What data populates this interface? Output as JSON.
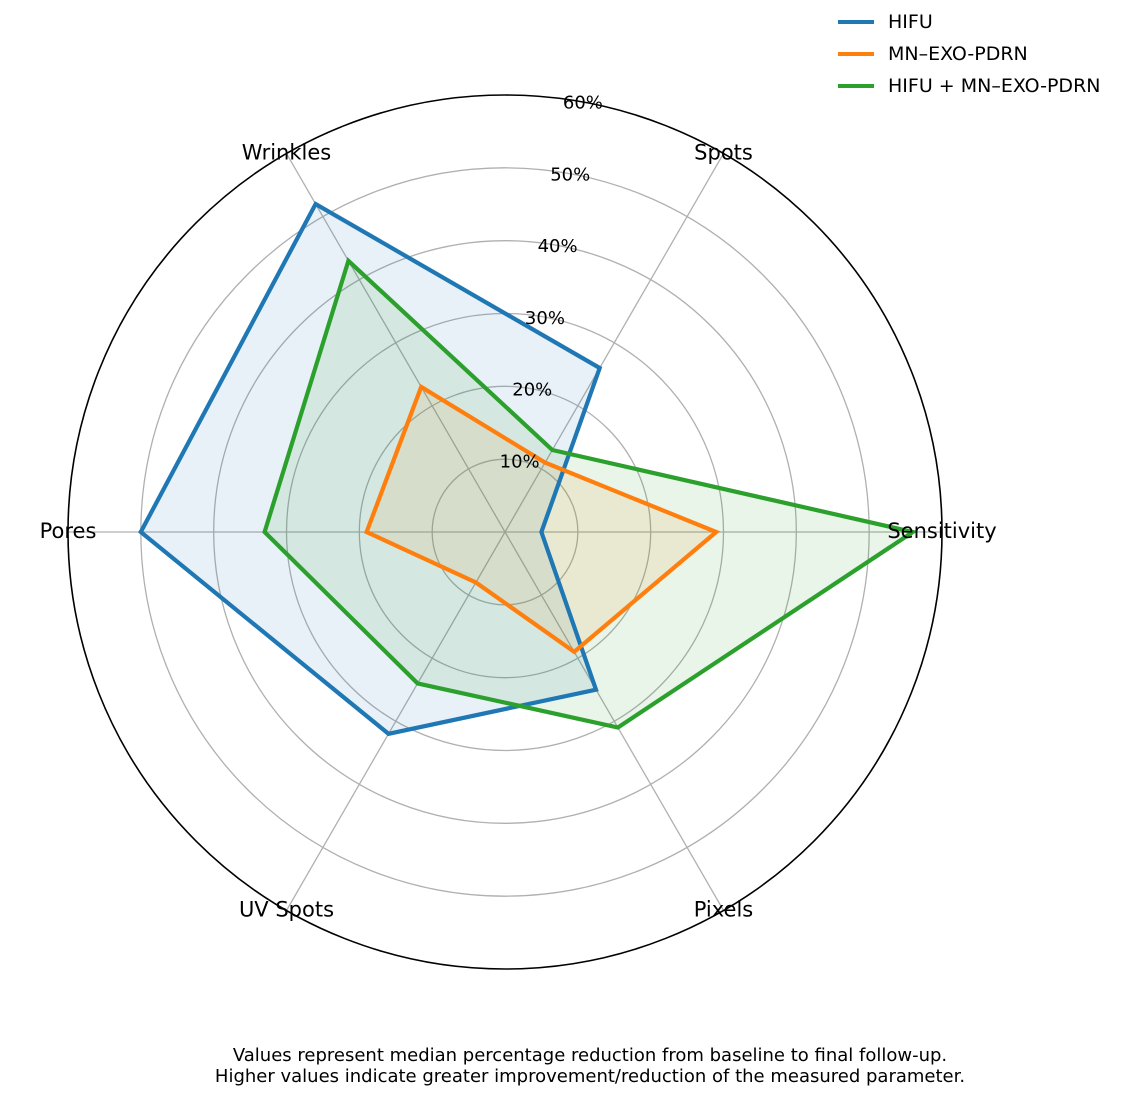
{
  "chart_data": {
    "type": "radar",
    "categories": [
      "Sensitivity",
      "Spots",
      "Wrinkles",
      "Pores",
      "UV Spots",
      "Pixels"
    ],
    "series": [
      {
        "name": "HIFU",
        "color": "#1f77b4",
        "values": [
          5,
          26,
          52,
          50,
          32,
          25
        ]
      },
      {
        "name": "MN–EXO-PDRN",
        "color": "#ff7f0e",
        "values": [
          29,
          11,
          23,
          19,
          8,
          19
        ]
      },
      {
        "name": "HIFU + MN–EXO-PDRN",
        "color": "#2ca02c",
        "values": [
          56,
          13,
          43,
          33,
          24,
          31
        ]
      }
    ],
    "r_ticks": [
      "10%",
      "20%",
      "30%",
      "40%",
      "50%",
      "60%"
    ],
    "r_tick_values": [
      10,
      20,
      30,
      40,
      50,
      60
    ],
    "rlim": [
      0,
      60
    ],
    "grid": true,
    "legend_position": "top-right"
  },
  "caption": {
    "line1": "Values represent median percentage reduction from baseline to final follow-up.",
    "line2": "Higher values indicate greater improvement/reduction of the measured parameter."
  }
}
